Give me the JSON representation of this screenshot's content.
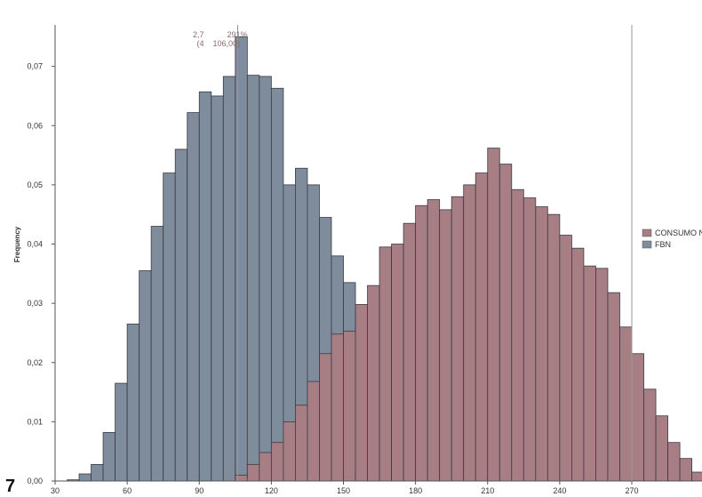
{
  "chart_data": {
    "type": "bar",
    "subtype": "overlaid-histogram",
    "title": "",
    "xlabel": "",
    "ylabel": "Frequency",
    "xlim": [
      30,
      270
    ],
    "ylim": [
      0,
      0.077
    ],
    "x_ticks": [
      "30",
      "60",
      "90",
      "120",
      "150",
      "180",
      "210",
      "240",
      "270"
    ],
    "y_ticks": [
      "0,00",
      "0,01",
      "0,02",
      "0,03",
      "0,04",
      "0,05",
      "0,06",
      "0,07"
    ],
    "bin_width": 5,
    "legend": {
      "placement": "right",
      "entries": [
        "CONSUMO N",
        "FBN"
      ]
    },
    "annotation": {
      "line1": "2,7",
      "line1b": "291%",
      "line2": "(4",
      "line2b": "106,00)",
      "x": 106
    },
    "series": [
      {
        "name": "FBN",
        "color": "#7f8c9c",
        "x_start": 35,
        "values": [
          0.0002,
          0.0012,
          0.0028,
          0.0082,
          0.0165,
          0.0265,
          0.0355,
          0.043,
          0.052,
          0.056,
          0.0622,
          0.0657,
          0.065,
          0.0683,
          0.075,
          0.0685,
          0.0683,
          0.0663,
          0.05,
          0.0528,
          0.05,
          0.0445,
          0.038,
          0.0335,
          0.0285,
          0.025,
          0.024,
          0.023
        ]
      },
      {
        "name": "CONSUMO N",
        "color": "#a77e84",
        "x_start": 105,
        "values": [
          0.001,
          0.0028,
          0.0048,
          0.0065,
          0.01,
          0.0128,
          0.0168,
          0.0215,
          0.0248,
          0.0253,
          0.0298,
          0.033,
          0.0395,
          0.04,
          0.0435,
          0.0465,
          0.0475,
          0.0458,
          0.048,
          0.05,
          0.052,
          0.0562,
          0.0535,
          0.0492,
          0.0478,
          0.0463,
          0.045,
          0.0415,
          0.0393,
          0.0363,
          0.0359,
          0.0318,
          0.026,
          0.0215,
          0.0155,
          0.011,
          0.0065,
          0.0038,
          0.0015,
          0.0005
        ]
      }
    ]
  },
  "corner_mark": "7"
}
